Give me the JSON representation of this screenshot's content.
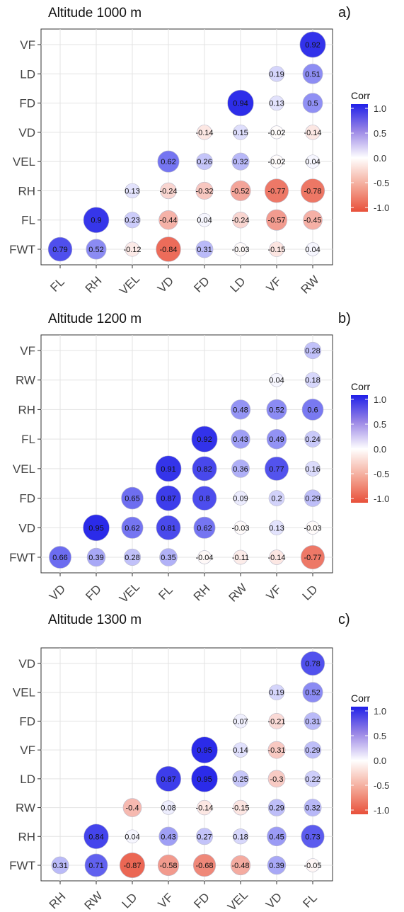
{
  "chart_data": [
    {
      "type": "heatmap",
      "title": "Altitude 1000 m",
      "panel": "a)",
      "y_labels": [
        "VF",
        "LD",
        "FD",
        "VD",
        "VEL",
        "RH",
        "FL",
        "FWT"
      ],
      "x_labels": [
        "FL",
        "RH",
        "VEL",
        "VD",
        "FD",
        "LD",
        "VF",
        "RW"
      ],
      "values": [
        [
          null,
          null,
          null,
          null,
          null,
          null,
          null,
          0.92
        ],
        [
          null,
          null,
          null,
          null,
          null,
          null,
          0.19,
          0.51
        ],
        [
          null,
          null,
          null,
          null,
          null,
          0.94,
          0.13,
          0.5
        ],
        [
          null,
          null,
          null,
          null,
          -0.14,
          0.15,
          -0.02,
          -0.14
        ],
        [
          null,
          null,
          null,
          0.62,
          0.26,
          0.32,
          -0.02,
          0.04
        ],
        [
          null,
          null,
          0.13,
          -0.24,
          -0.32,
          -0.52,
          -0.77,
          -0.78
        ],
        [
          null,
          0.9,
          0.23,
          -0.44,
          0.04,
          -0.24,
          -0.57,
          -0.45
        ],
        [
          0.79,
          0.52,
          -0.12,
          -0.84,
          0.31,
          -0.03,
          -0.15,
          0.04
        ]
      ],
      "legend": {
        "title": "Corr",
        "ticks": [
          "1.0",
          "0.5",
          "0.0",
          "-0.5",
          "-1.0"
        ],
        "range": [
          -1,
          1
        ],
        "placement": "right"
      },
      "grid": true
    },
    {
      "type": "heatmap",
      "title": "Altitude 1200 m",
      "panel": "b)",
      "y_labels": [
        "VF",
        "RW",
        "RH",
        "FL",
        "VEL",
        "FD",
        "VD",
        "FWT"
      ],
      "x_labels": [
        "VD",
        "FD",
        "VEL",
        "FL",
        "RH",
        "RW",
        "VF",
        "LD"
      ],
      "values": [
        [
          null,
          null,
          null,
          null,
          null,
          null,
          null,
          0.28
        ],
        [
          null,
          null,
          null,
          null,
          null,
          null,
          0.04,
          0.18
        ],
        [
          null,
          null,
          null,
          null,
          null,
          0.48,
          0.52,
          0.6
        ],
        [
          null,
          null,
          null,
          null,
          0.92,
          0.43,
          0.49,
          0.24
        ],
        [
          null,
          null,
          null,
          0.91,
          0.82,
          0.36,
          0.77,
          0.16
        ],
        [
          null,
          null,
          0.65,
          0.87,
          0.8,
          0.09,
          0.2,
          0.29
        ],
        [
          null,
          0.95,
          0.62,
          0.81,
          0.62,
          -0.03,
          0.13,
          -0.03
        ],
        [
          0.66,
          0.39,
          0.28,
          0.35,
          -0.04,
          -0.11,
          -0.14,
          -0.77
        ]
      ],
      "legend": {
        "title": "Corr",
        "ticks": [
          "1.0",
          "0.5",
          "0.0",
          "-0.5",
          "-1.0"
        ],
        "range": [
          -1,
          1
        ],
        "placement": "right"
      },
      "grid": true
    },
    {
      "type": "heatmap",
      "title": "Altitude 1300 m",
      "panel": "c)",
      "y_labels": [
        "VD",
        "VEL",
        "FD",
        "VF",
        "LD",
        "RW",
        "RH",
        "FWT"
      ],
      "x_labels": [
        "RH",
        "RW",
        "LD",
        "VF",
        "FD",
        "VEL",
        "VD",
        "FL"
      ],
      "values": [
        [
          null,
          null,
          null,
          null,
          null,
          null,
          null,
          0.78
        ],
        [
          null,
          null,
          null,
          null,
          null,
          null,
          0.19,
          0.52
        ],
        [
          null,
          null,
          null,
          null,
          null,
          0.07,
          -0.21,
          0.31
        ],
        [
          null,
          null,
          null,
          null,
          0.95,
          0.14,
          -0.31,
          0.29
        ],
        [
          null,
          null,
          null,
          0.87,
          0.95,
          0.25,
          -0.3,
          0.22
        ],
        [
          null,
          null,
          -0.4,
          0.08,
          -0.14,
          -0.15,
          0.29,
          0.32
        ],
        [
          null,
          0.84,
          0.04,
          0.43,
          0.27,
          0.18,
          0.45,
          0.73
        ],
        [
          0.31,
          0.71,
          -0.87,
          -0.58,
          -0.68,
          -0.48,
          0.39,
          -0.05
        ]
      ],
      "legend": {
        "title": "Corr",
        "ticks": [
          "1.0",
          "0.5",
          "0.0",
          "-0.5",
          "-1.0"
        ],
        "range": [
          -1,
          1
        ],
        "placement": "right"
      },
      "grid": true
    }
  ]
}
